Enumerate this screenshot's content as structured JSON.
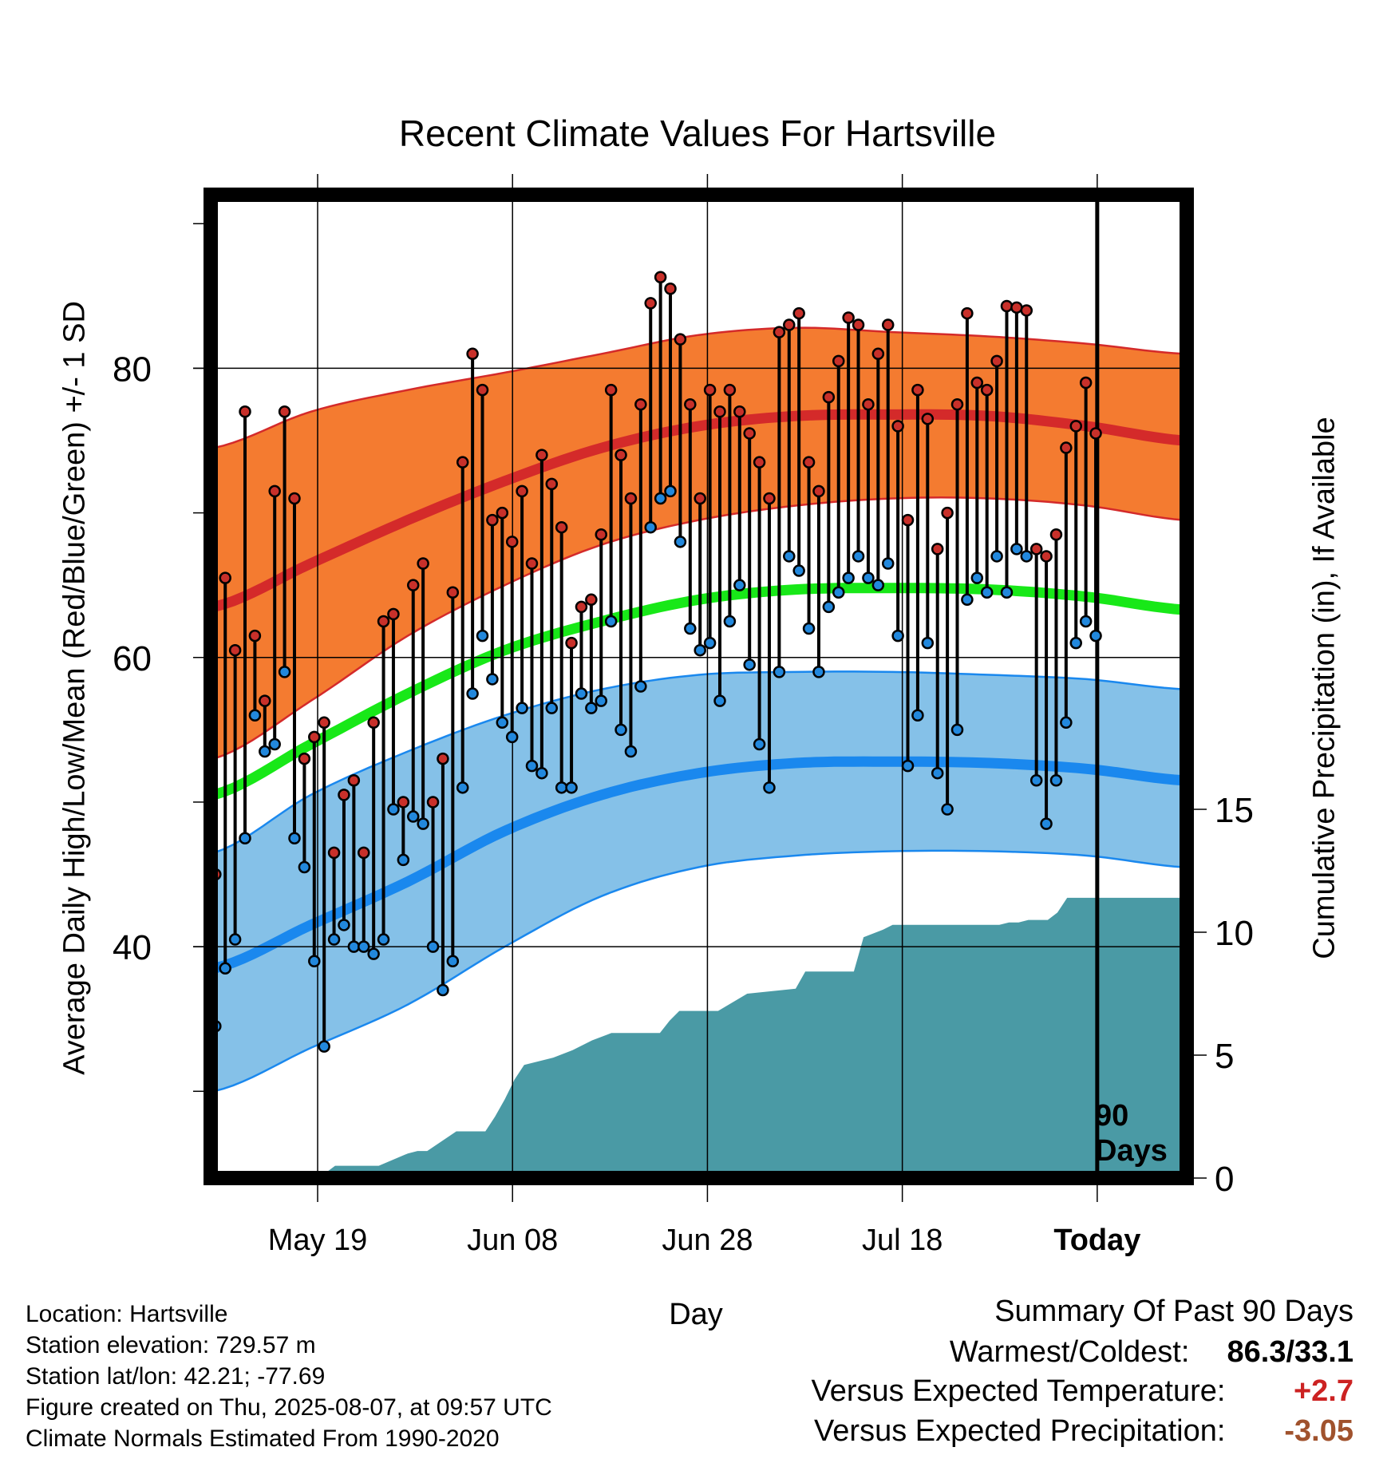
{
  "chart_data": {
    "type": "line",
    "title": "Recent Climate Values For Hartsville",
    "xlabel": "Day",
    "ylabel": "Average Daily High/Low/Mean (Red/Blue/Green) +/- 1 SD",
    "y2label": "Cumulative Precipitation (in), If Available",
    "x_ticks": [
      "May 19",
      "Jun 08",
      "Jun 28",
      "Jul 18",
      "Today"
    ],
    "y_ticks": [
      40,
      60,
      80
    ],
    "y2_ticks": [
      0,
      5,
      10,
      15
    ],
    "ylim": [
      24,
      92
    ],
    "y2lim": [
      0,
      40
    ],
    "marker_label": "90 Days",
    "grid": true,
    "colors": {
      "high_band": "#f47b30",
      "high_line": "#d42a2a",
      "low_band": "#85c1e8",
      "low_line": "#1a88ee",
      "mean_line": "#18e818",
      "precip": "#4a9aa5",
      "high_dot": "#c8302a",
      "low_dot": "#2288dd"
    },
    "normals": {
      "day": [
        0,
        10,
        20,
        30,
        40,
        50,
        60,
        70,
        80,
        90,
        100
      ],
      "high_mean": [
        63.5,
        66.5,
        69.5,
        72.2,
        74.5,
        76.0,
        76.7,
        76.8,
        76.7,
        76.0,
        75.0
      ],
      "high_upper": [
        74.5,
        77.0,
        78.5,
        79.7,
        81.0,
        82.3,
        82.8,
        82.5,
        82.2,
        81.7,
        81.0
      ],
      "high_lower": [
        53.0,
        57.0,
        61.5,
        65.0,
        67.8,
        69.5,
        70.5,
        71.0,
        71.0,
        70.5,
        69.5
      ],
      "low_mean": [
        38.5,
        41.5,
        44.5,
        48.0,
        50.5,
        52.0,
        52.7,
        52.8,
        52.7,
        52.3,
        51.5
      ],
      "low_upper": [
        46.5,
        50.5,
        53.5,
        56.0,
        57.8,
        58.8,
        59.0,
        59.0,
        58.8,
        58.5,
        57.8
      ],
      "low_lower": [
        30.0,
        33.0,
        36.0,
        40.0,
        43.5,
        45.5,
        46.3,
        46.6,
        46.6,
        46.3,
        45.5
      ],
      "avg_mean": [
        50.5,
        54.0,
        57.5,
        60.5,
        62.5,
        64.0,
        64.7,
        64.8,
        64.7,
        64.2,
        63.3
      ]
    },
    "x_tick_days": [
      10.7,
      30.8,
      50.9,
      71.0,
      91.1
    ],
    "marker_day": 91.1,
    "daily": {
      "high": [
        45.0,
        65.5,
        60.5,
        77.0,
        61.5,
        57.0,
        71.5,
        77.0,
        71.0,
        53.0,
        54.5,
        55.5,
        46.5,
        50.5,
        51.5,
        46.5,
        55.5,
        62.5,
        63.0,
        50.0,
        65.0,
        66.5,
        50.0,
        53.0,
        64.5,
        73.5,
        81.0,
        78.5,
        69.5,
        70.0,
        68.0,
        71.5,
        66.5,
        74.0,
        72.0,
        69.0,
        61.0,
        63.5,
        64.0,
        68.5,
        78.5,
        74.0,
        71.0,
        77.5,
        84.5,
        86.3,
        85.5,
        82.0,
        77.5,
        71.0,
        78.5,
        77.0,
        78.5,
        77.0,
        75.5,
        73.5,
        71.0,
        82.5,
        83.0,
        83.8,
        73.5,
        71.5,
        78.0,
        80.5,
        83.5,
        83.0,
        77.5,
        81.0,
        83.0,
        76.0,
        69.5,
        78.5,
        76.5,
        67.5,
        70.0,
        77.5,
        83.8,
        79.0,
        78.5,
        80.5,
        84.3,
        84.2,
        84.0,
        67.5,
        67.0,
        68.5,
        74.5,
        76.0,
        79.0,
        75.5
      ],
      "low": [
        34.5,
        38.5,
        40.5,
        47.5,
        56.0,
        53.5,
        54.0,
        59.0,
        47.5,
        45.5,
        39.0,
        33.1,
        40.5,
        41.5,
        40.0,
        40.0,
        39.5,
        40.5,
        49.5,
        46.0,
        49.0,
        48.5,
        40.0,
        37.0,
        39.0,
        51.0,
        57.5,
        61.5,
        58.5,
        55.5,
        54.5,
        56.5,
        52.5,
        52.0,
        56.5,
        51.0,
        51.0,
        57.5,
        56.5,
        57.0,
        62.5,
        55.0,
        53.5,
        58.0,
        69.0,
        71.0,
        71.5,
        68.0,
        62.0,
        60.5,
        61.0,
        57.0,
        62.5,
        65.0,
        59.5,
        54.0,
        51.0,
        59.0,
        67.0,
        66.0,
        62.0,
        59.0,
        63.5,
        64.5,
        65.5,
        67.0,
        65.5,
        65.0,
        66.5,
        61.5,
        52.5,
        56.0,
        61.0,
        52.0,
        49.5,
        55.0,
        64.0,
        65.5,
        64.5,
        67.0,
        64.5,
        67.5,
        67.0,
        51.5,
        48.5,
        51.5,
        55.5,
        61.0,
        62.5,
        61.5
      ]
    },
    "precip_cumulative": {
      "day": [
        0,
        6.5,
        10.5,
        11.5,
        12.5,
        13.5,
        17,
        20,
        21,
        22,
        25,
        28,
        29,
        30,
        31,
        32,
        35,
        37,
        39,
        41,
        46,
        47,
        48,
        52,
        55,
        60,
        61,
        66,
        67,
        69,
        70,
        81,
        82,
        83,
        84,
        86,
        87,
        88,
        90,
        92,
        100
      ],
      "value": [
        0,
        0,
        0.2,
        0.2,
        0.5,
        0.5,
        0.5,
        1.0,
        1.1,
        1.1,
        1.9,
        1.9,
        2.5,
        3.2,
        4.0,
        4.6,
        4.9,
        5.2,
        5.6,
        5.9,
        5.9,
        6.4,
        6.8,
        6.8,
        7.5,
        7.7,
        8.4,
        8.4,
        9.8,
        10.1,
        10.3,
        10.3,
        10.4,
        10.4,
        10.5,
        10.5,
        10.8,
        11.4,
        11.4,
        11.4,
        11.4
      ]
    }
  },
  "footer": {
    "location": "Location: Hartsville",
    "elevation": "Station elevation: 729.57 m",
    "latlon": "Station lat/lon: 42.21; -77.69",
    "created": "Figure created on Thu, 2025-08-07, at 09:57 UTC",
    "normals_note": "Climate Normals Estimated From 1990-2020"
  },
  "summary": {
    "heading": "Summary Of Past 90 Days",
    "warm_cold_label": "Warmest/Coldest:",
    "warm_cold_value": "86.3/33.1",
    "temp_label": "Versus Expected Temperature:",
    "temp_value": "+2.7",
    "temp_color": "#cc2222",
    "precip_label": "Versus Expected Precipitation:",
    "precip_value": "-3.05",
    "precip_color": "#a0522d"
  }
}
